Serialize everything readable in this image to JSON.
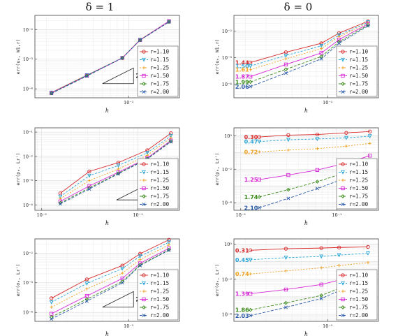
{
  "columns": [
    "δ = 1",
    "δ = 0"
  ],
  "series_styles": [
    {
      "color": "#d62728",
      "dash": "",
      "marker": "o"
    },
    {
      "color": "#2aa5d6",
      "dash": "3,2",
      "marker": "v"
    },
    {
      "color": "#f0a020",
      "dash": "2,2",
      "marker": "+"
    },
    {
      "color": "#d627d6",
      "dash": "",
      "marker": "s"
    },
    {
      "color": "#3a8a1a",
      "dash": "4,2",
      "marker": "d"
    },
    {
      "color": "#2b5aa8",
      "dash": "4,2",
      "marker": "x"
    }
  ],
  "chart_data": [
    {
      "type": "line",
      "scale": "loglog",
      "xlabel": "h",
      "ylabel": "err(u_h, W^{1,r})",
      "xlim": [
        0.016,
        0.27
      ],
      "ylim": [
        5e-05,
        0.03
      ],
      "xticks": [
        {
          "v": 0.1,
          "label": "10⁻¹"
        }
      ],
      "yticks": [
        {
          "v": 0.0001,
          "label": "10⁻⁴"
        },
        {
          "v": 0.001,
          "label": "10⁻³"
        },
        {
          "v": 0.01,
          "label": "10⁻²"
        }
      ],
      "legend": "right",
      "triangle": {
        "label": "2",
        "x0": 0.06,
        "x1": 0.11,
        "y0": 0.00015
      },
      "x": [
        0.0221,
        0.0442,
        0.0884,
        0.125,
        0.22
      ],
      "series": [
        {
          "name": "r=1.10",
          "values": [
            7.5e-05,
            0.00029,
            0.0011,
            0.0045,
            0.019
          ]
        },
        {
          "name": "r=1.15",
          "values": [
            7.4e-05,
            0.00029,
            0.0011,
            0.0045,
            0.019
          ]
        },
        {
          "name": "r=1.25",
          "values": [
            7.3e-05,
            0.00028,
            0.0011,
            0.0045,
            0.019
          ]
        },
        {
          "name": "r=1.50",
          "values": [
            7.2e-05,
            0.00028,
            0.0011,
            0.0044,
            0.019
          ]
        },
        {
          "name": "r=1.75",
          "values": [
            7.1e-05,
            0.00028,
            0.0011,
            0.0044,
            0.018
          ]
        },
        {
          "name": "r=2.00",
          "values": [
            7e-05,
            0.00027,
            0.0011,
            0.0044,
            0.018
          ]
        }
      ],
      "rates": []
    },
    {
      "type": "line",
      "scale": "loglog",
      "xlabel": "h",
      "ylabel": "err(u_h, W^{1,r})",
      "xlim": [
        0.016,
        0.27
      ],
      "ylim": [
        3e-05,
        0.04
      ],
      "xticks": [
        {
          "v": 0.1,
          "label": "10⁻¹"
        }
      ],
      "yticks": [
        {
          "v": 0.0001,
          "label": "10⁻⁴"
        },
        {
          "v": 0.001,
          "label": "10⁻³"
        },
        {
          "v": 0.01,
          "label": "10⁻²"
        }
      ],
      "legend": "right",
      "x": [
        0.0221,
        0.0442,
        0.0884,
        0.125,
        0.22
      ],
      "series": [
        {
          "name": "r=1.10",
          "values": [
            0.00065,
            0.0016,
            0.0035,
            0.0085,
            0.024
          ]
        },
        {
          "name": "r=1.15",
          "values": [
            0.00048,
            0.0012,
            0.0028,
            0.0072,
            0.022
          ]
        },
        {
          "name": "r=1.25",
          "values": [
            0.00035,
            0.0009,
            0.0022,
            0.0062,
            0.021
          ]
        },
        {
          "name": "r=1.50",
          "values": [
            0.00019,
            0.00055,
            0.0015,
            0.0048,
            0.019
          ]
        },
        {
          "name": "r=1.75",
          "values": [
            0.00012,
            0.00036,
            0.0011,
            0.004,
            0.017
          ]
        },
        {
          "name": "r=2.00",
          "values": [
            8e-05,
            0.00026,
            0.0009,
            0.0035,
            0.016
          ]
        }
      ],
      "rates": [
        "1.44",
        "1.50",
        "1.61",
        "1.87",
        "1.99",
        "2.06"
      ]
    },
    {
      "type": "line",
      "scale": "loglog",
      "xlabel": "h",
      "ylabel": "err(p_h, L^{r'})",
      "xlim": [
        0.0085,
        0.27
      ],
      "ylim": [
        6e-05,
        0.15
      ],
      "xticks": [
        {
          "v": 0.01,
          "label": "10⁻²"
        },
        {
          "v": 0.1,
          "label": "10⁻¹"
        }
      ],
      "yticks": [
        {
          "v": 0.0001,
          "label": "10⁻⁴"
        },
        {
          "v": 0.001,
          "label": "10⁻³"
        },
        {
          "v": 0.01,
          "label": "10⁻²"
        },
        {
          "v": 0.1,
          "label": "10⁻¹"
        }
      ],
      "legend": "right",
      "triangle": {
        "label": "2",
        "x0": 0.06,
        "x1": 0.11,
        "y0": 0.00016
      },
      "x": [
        0.0156,
        0.03125,
        0.0625,
        0.125,
        0.22
      ],
      "series": [
        {
          "name": "r=1.10",
          "values": [
            0.0003,
            0.0024,
            0.0055,
            0.018,
            0.09
          ]
        },
        {
          "name": "r=1.15",
          "values": [
            0.00022,
            0.0016,
            0.0042,
            0.014,
            0.07
          ]
        },
        {
          "name": "r=1.25",
          "values": [
            0.00018,
            0.001,
            0.003,
            0.011,
            0.058
          ]
        },
        {
          "name": "r=1.50",
          "values": [
            0.00014,
            0.0006,
            0.0022,
            0.0085,
            0.045
          ]
        },
        {
          "name": "r=1.75",
          "values": [
            0.00012,
            0.0005,
            0.002,
            0.008,
            0.042
          ]
        },
        {
          "name": "r=2.00",
          "values": [
            0.00011,
            0.00045,
            0.0019,
            0.0078,
            0.04
          ]
        }
      ],
      "rates": []
    },
    {
      "type": "line",
      "scale": "loglog",
      "xlabel": "h",
      "ylabel": "err(p_h, L^{r'})",
      "xlim": [
        0.0085,
        0.27
      ],
      "ylim": [
        3.5e-05,
        3
      ],
      "xticks": [
        {
          "v": 0.01,
          "label": "10⁻²"
        },
        {
          "v": 0.1,
          "label": "10⁻¹"
        }
      ],
      "yticks": [
        {
          "v": 0.0001,
          "label": "10⁻⁴"
        },
        {
          "v": 0.01,
          "label": "10⁻²"
        },
        {
          "v": 1,
          "label": "10⁰"
        }
      ],
      "legend": "right",
      "x": [
        0.0156,
        0.03125,
        0.0625,
        0.125,
        0.22
      ],
      "series": [
        {
          "name": "r=1.10",
          "values": [
            0.85,
            1.1,
            1.2,
            1.5,
            1.8
          ]
        },
        {
          "name": "r=1.15",
          "values": [
            0.45,
            0.58,
            0.65,
            0.75,
            0.95
          ]
        },
        {
          "name": "r=1.25",
          "values": [
            0.11,
            0.14,
            0.17,
            0.24,
            0.35
          ]
        },
        {
          "name": "r=1.50",
          "values": [
            0.0024,
            0.0045,
            0.009,
            0.023,
            0.065
          ]
        },
        {
          "name": "r=1.75",
          "values": [
            0.00022,
            0.0006,
            0.0018,
            0.0065,
            0.022
          ]
        },
        {
          "name": "r=2.00",
          "values": [
            5e-05,
            0.00018,
            0.0007,
            0.003,
            0.012
          ]
        }
      ],
      "rates": [
        "0.30",
        "0.47",
        "0.72",
        "1.25",
        "1.74",
        "2.10"
      ]
    },
    {
      "type": "line",
      "scale": "loglog",
      "xlabel": "h",
      "ylabel": "err(σ_h, L^{r'})",
      "xlim": [
        0.016,
        0.27
      ],
      "ylim": [
        5e-05,
        0.03
      ],
      "xticks": [
        {
          "v": 0.1,
          "label": "10⁻¹"
        }
      ],
      "yticks": [
        {
          "v": 0.0001,
          "label": "10⁻⁴"
        },
        {
          "v": 0.001,
          "label": "10⁻³"
        },
        {
          "v": 0.01,
          "label": "10⁻²"
        }
      ],
      "legend": "right",
      "triangle": {
        "label": "2",
        "x0": 0.06,
        "x1": 0.11,
        "y0": 0.00015
      },
      "x": [
        0.0221,
        0.0442,
        0.0884,
        0.125,
        0.22
      ],
      "series": [
        {
          "name": "r=1.10",
          "values": [
            0.0003,
            0.0013,
            0.0038,
            0.0095,
            0.028
          ]
        },
        {
          "name": "r=1.15",
          "values": [
            0.00022,
            0.00095,
            0.003,
            0.0078,
            0.023
          ]
        },
        {
          "name": "r=1.25",
          "values": [
            0.00015,
            0.00062,
            0.0021,
            0.006,
            0.019
          ]
        },
        {
          "name": "r=1.50",
          "values": [
            9e-05,
            0.00036,
            0.0014,
            0.0045,
            0.0145
          ]
        },
        {
          "name": "r=1.75",
          "values": [
            7e-05,
            0.00028,
            0.0011,
            0.004,
            0.013
          ]
        },
        {
          "name": "r=2.00",
          "values": [
            6e-05,
            0.00024,
            0.001,
            0.0038,
            0.0125
          ]
        }
      ],
      "rates": []
    },
    {
      "type": "line",
      "scale": "loglog",
      "xlabel": "h",
      "ylabel": "err(σ_h, L^{r'})",
      "xlim": [
        0.016,
        0.27
      ],
      "ylim": [
        4e-05,
        2
      ],
      "xticks": [
        {
          "v": 0.1,
          "label": "10⁻¹"
        }
      ],
      "yticks": [
        {
          "v": 0.0001,
          "label": "10⁻⁴"
        },
        {
          "v": 0.01,
          "label": "10⁻²"
        },
        {
          "v": 1,
          "label": "10⁰"
        }
      ],
      "legend": "right",
      "x": [
        0.0221,
        0.0442,
        0.0884,
        0.125,
        0.22
      ],
      "series": [
        {
          "name": "r=1.10",
          "values": [
            0.45,
            0.55,
            0.6,
            0.65,
            0.7
          ]
        },
        {
          "name": "r=1.15",
          "values": [
            0.13,
            0.17,
            0.2,
            0.24,
            0.3
          ]
        },
        {
          "name": "r=1.25",
          "values": [
            0.02,
            0.03,
            0.045,
            0.06,
            0.09
          ]
        },
        {
          "name": "r=1.50",
          "values": [
            0.0015,
            0.0026,
            0.005,
            0.009,
            0.018
          ]
        },
        {
          "name": "r=1.75",
          "values": [
            0.00018,
            0.00045,
            0.0012,
            0.003,
            0.008
          ]
        },
        {
          "name": "r=2.00",
          "values": [
            8.5e-05,
            0.00025,
            0.0008,
            0.0022,
            0.0065
          ]
        }
      ],
      "rates": [
        "0.31",
        "0.45",
        "0.74",
        "1.39",
        "1.86",
        "2.03"
      ]
    }
  ]
}
